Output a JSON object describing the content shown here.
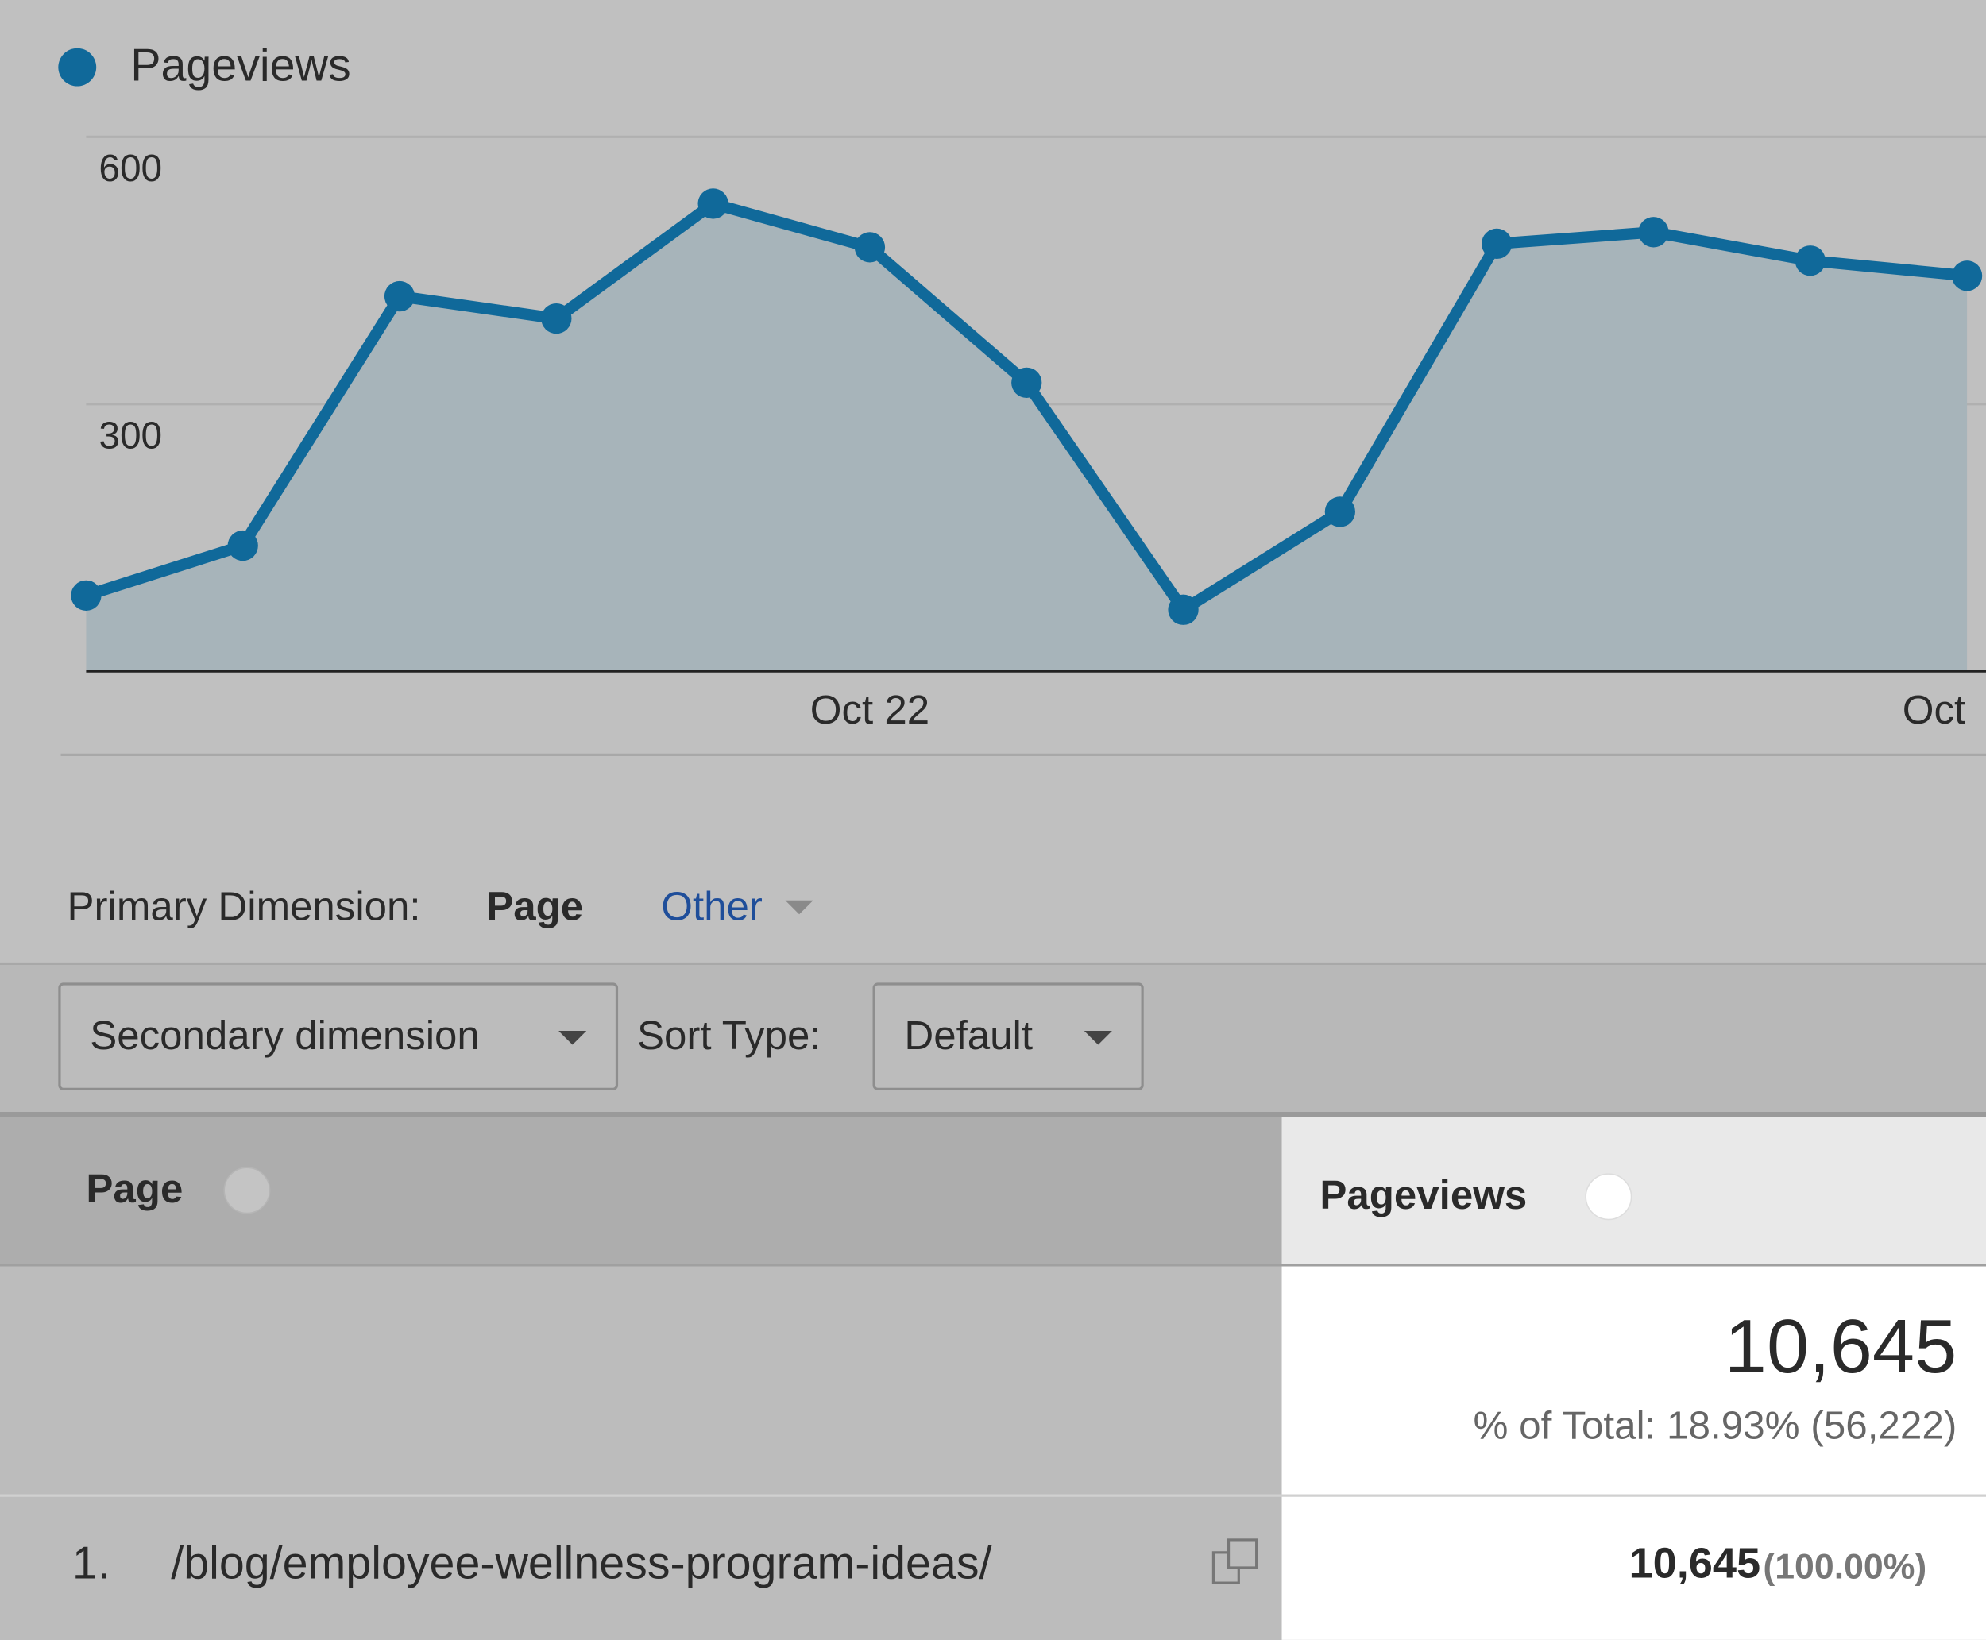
{
  "chart_data": {
    "type": "line",
    "categories": [
      null,
      null,
      null,
      null,
      null,
      "Oct 22",
      null,
      null,
      null,
      null,
      null,
      null,
      "Oct"
    ],
    "series": [
      {
        "name": "Pageviews",
        "color": "#10699a",
        "values": [
          85,
          141,
          421,
          396,
          525,
          476,
          324,
          69,
          179,
          480,
          493,
          461,
          444
        ]
      }
    ],
    "ylim": [
      0,
      600
    ],
    "yticks": [
      300,
      600
    ],
    "grid": true
  },
  "dimension": {
    "label": "Primary Dimension:",
    "selected": "Page",
    "other": "Other"
  },
  "controls": {
    "secondary": "Secondary dimension",
    "sort_label": "Sort Type:",
    "sort_value": "Default"
  },
  "table": {
    "headers": [
      "Page",
      "Pageviews"
    ],
    "total": {
      "value": "10,645",
      "share": "% of Total: 18.93% (56,222)"
    },
    "rows": [
      [
        "1.",
        "/blog/employee-wellness-program-ideas/",
        "10,645",
        "(100.00%)"
      ]
    ]
  }
}
